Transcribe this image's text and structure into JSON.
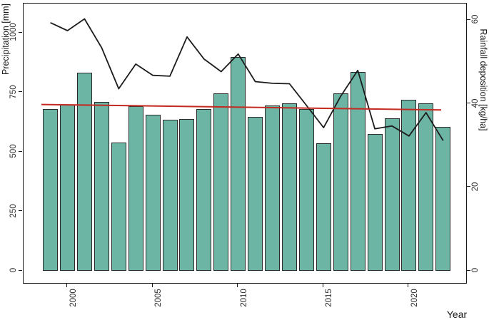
{
  "chart_data": {
    "type": "bar",
    "title": "",
    "x_title": "Year",
    "y_left_title": "Precipitation [mm]",
    "y_right_title": "Rainfall deposition [kg/ha]",
    "years": [
      1999,
      2000,
      2001,
      2002,
      2003,
      2004,
      2005,
      2006,
      2007,
      2008,
      2009,
      2010,
      2011,
      2012,
      2013,
      2014,
      2015,
      2016,
      2017,
      2018,
      2019,
      2020,
      2021,
      2022
    ],
    "series": [
      {
        "name": "Precipitation",
        "type": "bar",
        "axis": "left",
        "unit": "mm",
        "values": [
          681,
          698,
          833,
          711,
          539,
          691,
          656,
          634,
          639,
          679,
          746,
          898,
          646,
          694,
          703,
          679,
          536,
          746,
          835,
          574,
          641,
          719,
          703,
          606
        ]
      },
      {
        "name": "Rainfall deposition",
        "type": "line",
        "axis": "right",
        "unit": "kg/ha",
        "values": [
          59.4,
          57.5,
          60.3,
          53.4,
          43.6,
          49.5,
          46.8,
          46.6,
          56.0,
          50.7,
          47.7,
          51.9,
          45.3,
          44.9,
          44.8,
          39.6,
          34.3,
          41.8,
          48.0,
          34.0,
          34.7,
          32.3,
          37.9,
          31.2
        ]
      },
      {
        "name": "Precipitation trend",
        "type": "trend",
        "axis": "left",
        "unit": "mm",
        "values": [
          699,
          676
        ]
      }
    ],
    "y_left_ticks": [
      "0",
      "250",
      "500",
      "750",
      "1000"
    ],
    "y_right_ticks": [
      "0",
      "20",
      "40",
      "60"
    ],
    "x_ticks": [
      "2000",
      "2005",
      "2010",
      "2015",
      "2020"
    ],
    "axis_hints": {
      "y_left_lim": [
        0,
        1100
      ],
      "y_right_lim": [
        0,
        64
      ],
      "grid": "off",
      "legend": "none"
    },
    "colors": {
      "bar_fill": "#6cb4a4",
      "bar_border": "#2a2a2a",
      "deposition_line": "#1c1c1c",
      "trend_line": "#c42a21",
      "axis": "#1a1a1a"
    }
  }
}
